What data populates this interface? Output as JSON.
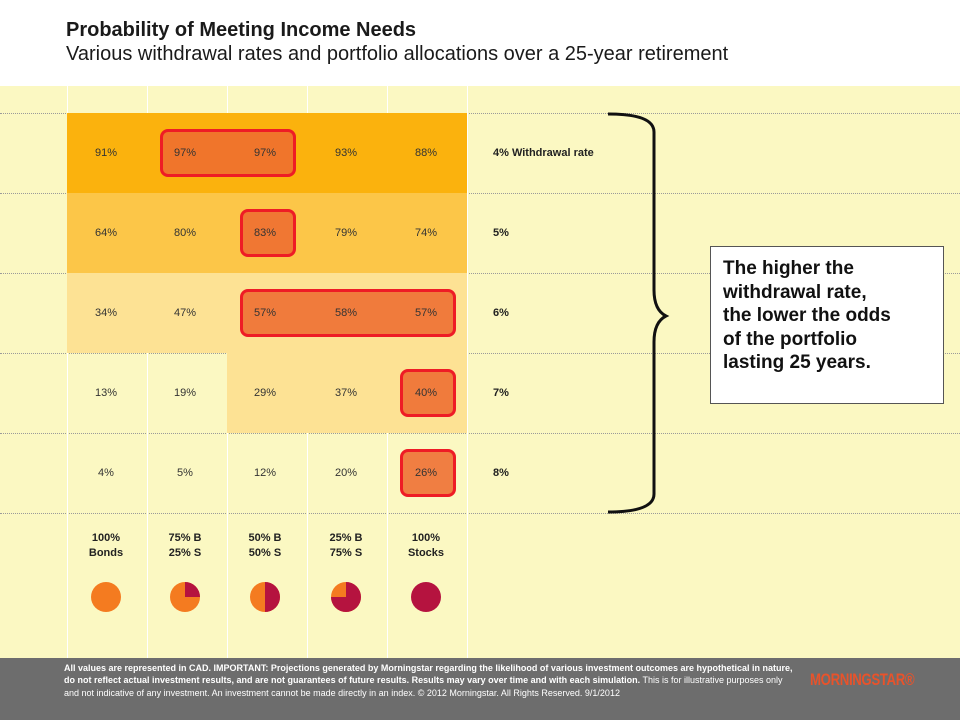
{
  "header": {
    "title": "Probability of Meeting Income Needs",
    "subtitle": "Various withdrawal rates and portfolio allocations over a 25-year retirement"
  },
  "chart_data": {
    "type": "heatmap",
    "row_labels": [
      "4% Withdrawal rate",
      "5%",
      "6%",
      "7%",
      "8%"
    ],
    "columns": [
      {
        "line1": "100%",
        "line2": "Bonds",
        "stock_fraction": 0
      },
      {
        "line1": "75% B",
        "line2": "25% S",
        "stock_fraction": 0.25
      },
      {
        "line1": "50% B",
        "line2": "50% S",
        "stock_fraction": 0.5
      },
      {
        "line1": "25% B",
        "line2": "75% S",
        "stock_fraction": 0.75
      },
      {
        "line1": "100%",
        "line2": "Stocks",
        "stock_fraction": 1
      }
    ],
    "values": [
      [
        91,
        97,
        97,
        93,
        88
      ],
      [
        64,
        80,
        83,
        79,
        74
      ],
      [
        34,
        47,
        57,
        58,
        57
      ],
      [
        13,
        19,
        29,
        37,
        40
      ],
      [
        4,
        5,
        12,
        20,
        26
      ]
    ],
    "value_labels": [
      [
        "91%",
        "97%",
        "97%",
        "93%",
        "88%"
      ],
      [
        "64%",
        "80%",
        "83%",
        "79%",
        "74%"
      ],
      [
        "34%",
        "47%",
        "57%",
        "58%",
        "57%"
      ],
      [
        "13%",
        "19%",
        "29%",
        "37%",
        "40%"
      ],
      [
        "4%",
        "5%",
        "12%",
        "20%",
        "26%"
      ]
    ],
    "highlighted_cells": [
      [
        0,
        1
      ],
      [
        0,
        2
      ],
      [
        1,
        2
      ],
      [
        2,
        2
      ],
      [
        2,
        3
      ],
      [
        2,
        4
      ],
      [
        3,
        4
      ],
      [
        4,
        4
      ]
    ],
    "grid": true
  },
  "callout": {
    "lines": [
      "The higher the",
      "withdrawal rate,",
      "the lower the odds",
      "of the portfolio",
      "lasting 25 years."
    ]
  },
  "footer": {
    "bold_text": "All values are represented in CAD. IMPORTANT: Projections generated by Morningstar regarding the likelihood of various investment outcomes are hypothetical in nature, do not reflect actual investment results, and are not guarantees of future results. Results may vary over time and with each simulation.",
    "text": " This is for illustrative purposes only and not indicative of any investment. An investment cannot be made directly in an index. © 2012 Morningstar. All Rights Reserved. 9/1/2012",
    "logo": "MORNINGSTAR®"
  },
  "colors": {
    "background": "#fbf8c2",
    "high": "#fbb20d",
    "mid": "#fcc648",
    "low": "#fde294",
    "highlight_fill": "#ee6c30",
    "highlight_border": "#ee1c25",
    "bonds": "#f47b20",
    "stocks": "#b5133f",
    "footer": "#6d6d6d",
    "logo": "#e8532b"
  }
}
